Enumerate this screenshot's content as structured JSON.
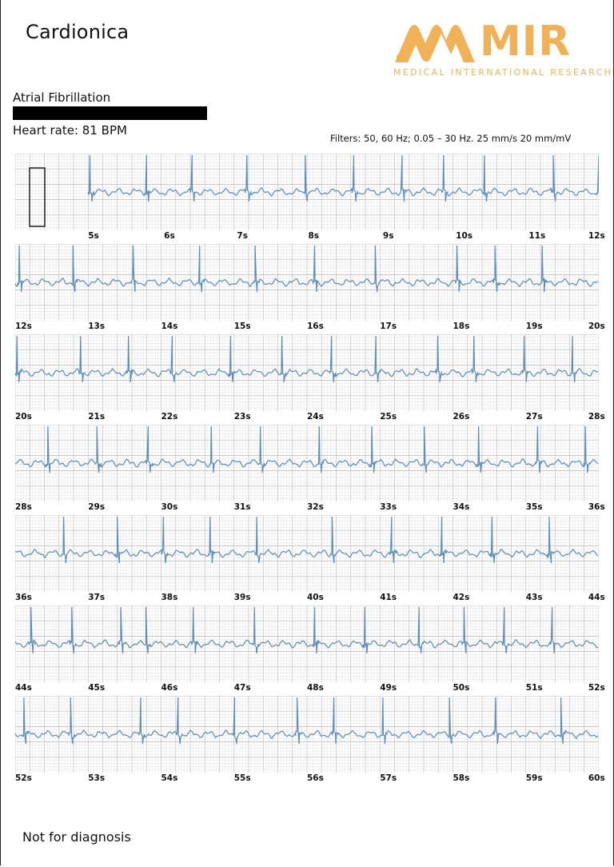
{
  "header": {
    "brand": "Cardionica",
    "logo_word": "MIR",
    "logo_subtitle": "MEDICAL INTERNATIONAL RESEARCH",
    "logo_color": "#f0b157"
  },
  "report": {
    "diagnosis": "Atrial Fibrillation",
    "heart_rate": "Heart rate: 81 BPM",
    "filters": "Filters: 50, 60 Hz; 0.05  – 30 Hz.   25 mm/s  20 mm/mV"
  },
  "colors": {
    "trace": "#5b8db8",
    "grid_minor": "#dcdcdc",
    "grid_major": "#b9b9b9"
  },
  "strips": [
    {
      "calibration": true,
      "labels": [
        "5s",
        "6s",
        "7s",
        "8s",
        "9s",
        "10s",
        "11s",
        "12s"
      ],
      "r_peaks": [
        0.128,
        0.225,
        0.303,
        0.397,
        0.497,
        0.58,
        0.663,
        0.734,
        0.804,
        0.922,
        1.0
      ]
    },
    {
      "labels": [
        "12s",
        "13s",
        "14s",
        "15s",
        "16s",
        "17s",
        "18s",
        "19s",
        "20s"
      ],
      "r_peaks": [
        0.007,
        0.099,
        0.202,
        0.316,
        0.411,
        0.513,
        0.617,
        0.757,
        0.822,
        0.903
      ]
    },
    {
      "labels": [
        "20s",
        "21s",
        "22s",
        "23s",
        "24s",
        "25s",
        "26s",
        "27s",
        "28s"
      ],
      "r_peaks": [
        0.003,
        0.112,
        0.194,
        0.269,
        0.369,
        0.457,
        0.542,
        0.618,
        0.724,
        0.786,
        0.872,
        0.955
      ]
    },
    {
      "labels": [
        "28s",
        "29s",
        "30s",
        "31s",
        "32s",
        "33s",
        "34s",
        "35s",
        "36s"
      ],
      "r_peaks": [
        0.056,
        0.14,
        0.228,
        0.336,
        0.42,
        0.521,
        0.611,
        0.701,
        0.794,
        0.895,
        0.977
      ]
    },
    {
      "labels": [
        "36s",
        "37s",
        "38s",
        "39s",
        "40s",
        "41s",
        "42s",
        "43s",
        "44s"
      ],
      "r_peaks": [
        0.083,
        0.175,
        0.254,
        0.334,
        0.414,
        0.543,
        0.645,
        0.731,
        0.817,
        0.915
      ]
    },
    {
      "labels": [
        "44s",
        "45s",
        "46s",
        "47s",
        "48s",
        "49s",
        "50s",
        "51s",
        "52s"
      ],
      "r_peaks": [
        0.027,
        0.097,
        0.181,
        0.224,
        0.305,
        0.41,
        0.513,
        0.599,
        0.692,
        0.769,
        0.838,
        0.92
      ]
    },
    {
      "labels": [
        "52s",
        "53s",
        "54s",
        "55s",
        "56s",
        "57s",
        "58s",
        "59s",
        "60s"
      ],
      "r_peaks": [
        0.015,
        0.095,
        0.215,
        0.279,
        0.376,
        0.483,
        0.546,
        0.63,
        0.744,
        0.823,
        0.935
      ]
    }
  ],
  "footer": {
    "note": "Not for diagnosis"
  }
}
